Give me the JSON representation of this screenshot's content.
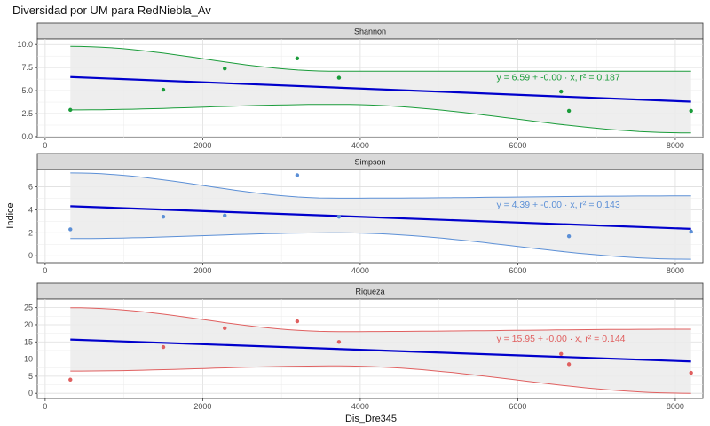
{
  "chart_data": {
    "type": "scatter",
    "title": "Diversidad por UM para RedNiebla_Av",
    "xlabel": "Dis_Dre345",
    "ylabel": "Indice",
    "xlim": [
      -100,
      8350
    ],
    "x_ticks": [
      "0",
      "2000",
      "4000",
      "6000",
      "8000"
    ],
    "x_tick_values": [
      0,
      2000,
      4000,
      6000,
      8000
    ],
    "colors": {
      "fit": "#0000cc",
      "ribbon": "#ebebeb",
      "strip": "#d9d9d9"
    },
    "panels": [
      {
        "name": "Shannon",
        "color": "#1a9c3a",
        "ylim": [
          -0.1,
          10.6
        ],
        "y_ticks": [
          "0.0",
          "2.5",
          "5.0",
          "7.5",
          "10.0"
        ],
        "y_tick_values": [
          0,
          2.5,
          5,
          7.5,
          10
        ],
        "points": [
          [
            320,
            2.9
          ],
          [
            1500,
            5.1
          ],
          [
            2280,
            7.4
          ],
          [
            3200,
            8.5
          ],
          [
            3730,
            6.4
          ],
          [
            6550,
            4.9
          ],
          [
            6650,
            2.8
          ],
          [
            8200,
            2.8
          ]
        ],
        "fit": {
          "intercept": 6.59,
          "slope": -0.00034
        },
        "band": {
          "x": [
            320,
            3700,
            8200
          ],
          "upper": [
            9.8,
            7.1,
            7.1
          ],
          "lower": [
            2.9,
            3.5,
            0.4
          ]
        },
        "equation": "y = 6.59 + -0.00 · x,  r² = 0.187"
      },
      {
        "name": "Simpson",
        "color": "#5b8fd6",
        "ylim": [
          -0.6,
          7.5
        ],
        "y_ticks": [
          "0",
          "2",
          "4",
          "6"
        ],
        "y_tick_values": [
          0,
          2,
          4,
          6
        ],
        "points": [
          [
            320,
            2.3
          ],
          [
            1500,
            3.4
          ],
          [
            2280,
            3.5
          ],
          [
            3200,
            7.0
          ],
          [
            3730,
            3.4
          ],
          [
            6650,
            1.7
          ],
          [
            8200,
            2.1
          ]
        ],
        "fit": {
          "intercept": 4.39,
          "slope": -0.00025
        },
        "band": {
          "x": [
            320,
            3700,
            8200
          ],
          "upper": [
            7.2,
            5.0,
            5.2
          ],
          "lower": [
            1.5,
            2.0,
            -0.3
          ]
        },
        "equation": "y = 4.39 + -0.00 · x,  r² = 0.143"
      },
      {
        "name": "Riqueza",
        "color": "#e06060",
        "ylim": [
          -1.5,
          27.5
        ],
        "y_ticks": [
          "0",
          "5",
          "10",
          "15",
          "20",
          "25"
        ],
        "y_tick_values": [
          0,
          5,
          10,
          15,
          20,
          25
        ],
        "points": [
          [
            320,
            4.0
          ],
          [
            1500,
            13.5
          ],
          [
            2280,
            19.0
          ],
          [
            3200,
            21.0
          ],
          [
            3730,
            15.0
          ],
          [
            6550,
            11.5
          ],
          [
            6650,
            8.5
          ],
          [
            8200,
            6.0
          ]
        ],
        "fit": {
          "intercept": 15.95,
          "slope": -0.00081
        },
        "band": {
          "x": [
            320,
            3700,
            8200
          ],
          "upper": [
            25.0,
            18.0,
            18.7
          ],
          "lower": [
            6.5,
            8.0,
            0.0
          ]
        },
        "equation": "y = 15.95 + -0.00 · x,  r² = 0.144"
      }
    ]
  }
}
